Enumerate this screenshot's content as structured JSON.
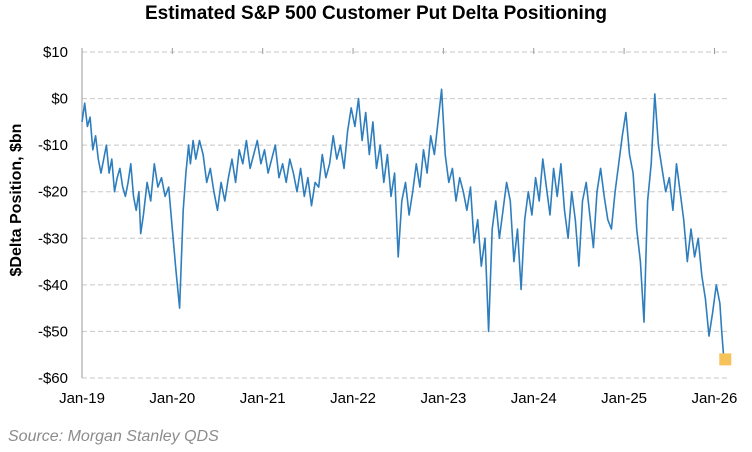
{
  "chart_data": {
    "type": "line",
    "title": "Estimated S&P 500 Customer Put Delta Positioning",
    "ylabel": "$Delta Position, $bn",
    "xlabel": "",
    "ylim": [
      -60,
      10
    ],
    "y_ticks": [
      10,
      0,
      -10,
      -20,
      -30,
      -40,
      -50,
      -60
    ],
    "y_tick_labels": [
      "$10",
      "$0",
      "-$10",
      "-$20",
      "-$30",
      "-$40",
      "-$50",
      "-$60"
    ],
    "x_range": [
      2019.0,
      2026.15
    ],
    "x_ticks": [
      2019,
      2020,
      2021,
      2022,
      2023,
      2024,
      2025,
      2026
    ],
    "x_tick_labels": [
      "Jan-19",
      "Jan-20",
      "Jan-21",
      "Jan-22",
      "Jan-23",
      "Jan-24",
      "Jan-25",
      "Jan-26"
    ],
    "grid": "horizontal dashed",
    "series": [
      {
        "name": "Customer Put Delta Positioning",
        "color": "#2E7EBE",
        "x": [
          2019.0,
          2019.03,
          2019.06,
          2019.09,
          2019.12,
          2019.15,
          2019.18,
          2019.21,
          2019.24,
          2019.27,
          2019.3,
          2019.33,
          2019.36,
          2019.39,
          2019.42,
          2019.45,
          2019.48,
          2019.51,
          2019.54,
          2019.57,
          2019.6,
          2019.63,
          2019.65,
          2019.68,
          2019.72,
          2019.76,
          2019.8,
          2019.84,
          2019.88,
          2019.92,
          2019.96,
          2020.0,
          2020.04,
          2020.08,
          2020.12,
          2020.15,
          2020.16,
          2020.18,
          2020.2,
          2020.23,
          2020.26,
          2020.3,
          2020.34,
          2020.38,
          2020.42,
          2020.46,
          2020.5,
          2020.54,
          2020.58,
          2020.62,
          2020.66,
          2020.7,
          2020.74,
          2020.78,
          2020.82,
          2020.86,
          2020.9,
          2020.94,
          2020.98,
          2021.02,
          2021.06,
          2021.1,
          2021.14,
          2021.18,
          2021.22,
          2021.26,
          2021.3,
          2021.34,
          2021.38,
          2021.42,
          2021.46,
          2021.5,
          2021.54,
          2021.58,
          2021.62,
          2021.66,
          2021.7,
          2021.74,
          2021.78,
          2021.82,
          2021.86,
          2021.9,
          2021.94,
          2021.98,
          2022.02,
          2022.06,
          2022.1,
          2022.14,
          2022.18,
          2022.22,
          2022.26,
          2022.3,
          2022.34,
          2022.38,
          2022.42,
          2022.46,
          2022.5,
          2022.54,
          2022.58,
          2022.62,
          2022.66,
          2022.7,
          2022.74,
          2022.78,
          2022.82,
          2022.86,
          2022.9,
          2022.94,
          2022.98,
          2023.02,
          2023.06,
          2023.1,
          2023.14,
          2023.18,
          2023.22,
          2023.26,
          2023.3,
          2023.34,
          2023.38,
          2023.42,
          2023.46,
          2023.5,
          2023.54,
          2023.58,
          2023.62,
          2023.66,
          2023.7,
          2023.74,
          2023.78,
          2023.82,
          2023.86,
          2023.9,
          2023.94,
          2023.98,
          2024.02,
          2024.06,
          2024.1,
          2024.14,
          2024.18,
          2024.22,
          2024.26,
          2024.3,
          2024.34,
          2024.38,
          2024.42,
          2024.46,
          2024.5,
          2024.54,
          2024.58,
          2024.62,
          2024.66,
          2024.7,
          2024.74,
          2024.78,
          2024.82,
          2024.86,
          2024.9,
          2024.94,
          2024.98,
          2025.02,
          2025.06,
          2025.1,
          2025.14,
          2025.18,
          2025.22,
          2025.26,
          2025.3,
          2025.34,
          2025.38,
          2025.42,
          2025.46,
          2025.5,
          2025.54,
          2025.58,
          2025.62,
          2025.66,
          2025.7,
          2025.74,
          2025.78,
          2025.82,
          2025.86,
          2025.9,
          2025.94,
          2025.98,
          2026.02,
          2026.06,
          2026.08,
          2026.1
        ],
        "values": [
          -5,
          -1,
          -6,
          -4,
          -11,
          -8,
          -13,
          -16,
          -13,
          -10,
          -16,
          -13,
          -20,
          -17,
          -15,
          -19,
          -21,
          -18,
          -14,
          -21,
          -24,
          -20,
          -29,
          -25,
          -18,
          -22,
          -14,
          -19,
          -17,
          -21,
          -19,
          -28,
          -37,
          -45,
          -24,
          -16,
          -14,
          -10,
          -14,
          -9,
          -13,
          -9,
          -12,
          -18,
          -15,
          -20,
          -24,
          -18,
          -22,
          -17,
          -13,
          -18,
          -11,
          -14,
          -9,
          -15,
          -12,
          -9,
          -14,
          -11,
          -16,
          -13,
          -10,
          -17,
          -14,
          -18,
          -13,
          -16,
          -20,
          -15,
          -21,
          -17,
          -23,
          -18,
          -19,
          -12,
          -17,
          -14,
          -8,
          -13,
          -10,
          -15,
          -7,
          -2,
          -6,
          0,
          -9,
          -3,
          -12,
          -5,
          -15,
          -10,
          -18,
          -12,
          -21,
          -16,
          -34,
          -22,
          -18,
          -25,
          -20,
          -14,
          -19,
          -11,
          -16,
          -8,
          -12,
          -5,
          2,
          -12,
          -18,
          -15,
          -22,
          -17,
          -20,
          -24,
          -19,
          -31,
          -26,
          -36,
          -30,
          -50,
          -28,
          -22,
          -30,
          -24,
          -18,
          -22,
          -35,
          -28,
          -41,
          -26,
          -20,
          -25,
          -17,
          -22,
          -13,
          -19,
          -25,
          -15,
          -21,
          -14,
          -24,
          -30,
          -20,
          -26,
          -36,
          -22,
          -18,
          -25,
          -32,
          -20,
          -15,
          -21,
          -26,
          -28,
          -20,
          -14,
          -8,
          -3,
          -12,
          -16,
          -28,
          -35,
          -48,
          -22,
          -14,
          1,
          -10,
          -15,
          -20,
          -17,
          -24,
          -14,
          -20,
          -26,
          -35,
          -28,
          -34,
          -30,
          -38,
          -43,
          -51,
          -46,
          -40,
          -44,
          -50,
          -55
        ],
        "highlight": {
          "x": 2026.12,
          "y": -56,
          "color": "#F5C35A"
        }
      }
    ]
  },
  "source": "Source: Morgan Stanley QDS"
}
